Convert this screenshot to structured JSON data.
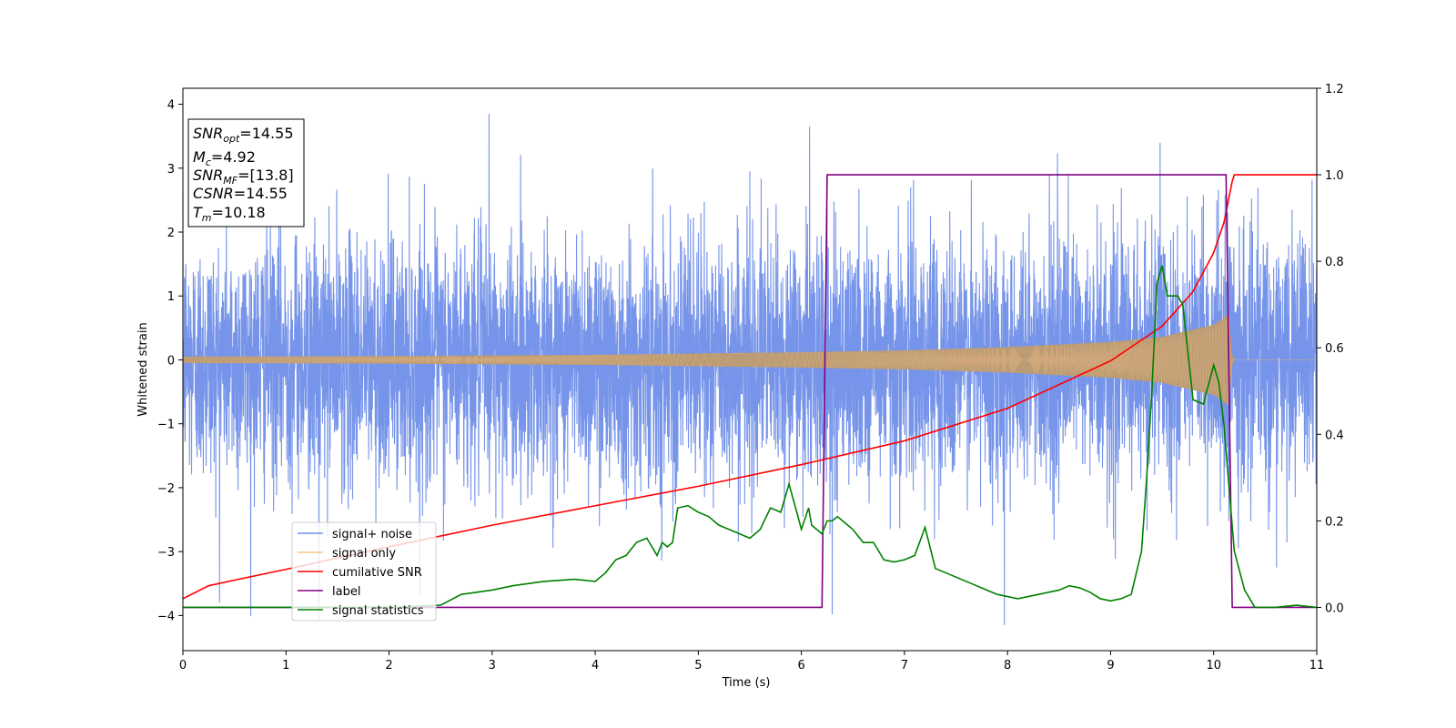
{
  "chart_data": {
    "type": "line",
    "xlabel": "Time (s)",
    "ylabel": "Whitened strain",
    "xlim": [
      0,
      11
    ],
    "ylim": [
      -4.55,
      4.25
    ],
    "y2lim": [
      -0.1,
      1.2
    ],
    "x_ticks": [
      "0",
      "1",
      "2",
      "3",
      "4",
      "5",
      "6",
      "7",
      "8",
      "9",
      "10",
      "11"
    ],
    "y_ticks": [
      "−4",
      "−3",
      "−2",
      "−1",
      "0",
      "1",
      "2",
      "3",
      "4"
    ],
    "y2_ticks": [
      "0.0",
      "0.2",
      "0.4",
      "0.6",
      "0.8",
      "1.0",
      "1.2"
    ],
    "legend_position": "lower-left",
    "annotation": {
      "lines": [
        {
          "sym": "SNR",
          "sub": "opt",
          "val": "=14.55"
        },
        {
          "sym": "M",
          "sub": "c",
          "val": "=4.92"
        },
        {
          "sym": "SNR",
          "sub": "MF",
          "val": "=[13.8]"
        },
        {
          "sym": "CSNR",
          "sub": "",
          "val": "=14.55"
        },
        {
          "sym": "T",
          "sub": "m",
          "val": "=10.18"
        }
      ]
    },
    "series": [
      {
        "name": "signal+ noise",
        "axis": "left",
        "color": "#6f8ee8",
        "description": "whitened Gaussian noise plus chirp, amplitude about ±2 to ±3",
        "noise_std": 1.0,
        "peaks": [
          [
            2.97,
            3.85
          ],
          [
            6.08,
            3.65
          ],
          [
            9.48,
            3.4
          ],
          [
            5.5,
            2.95
          ],
          [
            7.97,
            -4.15
          ],
          [
            6.3,
            -3.98
          ],
          [
            1.32,
            -4.05
          ]
        ]
      },
      {
        "name": "signal only",
        "axis": "left",
        "color": "#f5c77e",
        "description": "chirp; envelope grows from 0.05 at t=0 to 0.72 near t=10.15, zero after t=10.18",
        "envelope": {
          "x": [
            0,
            1,
            2,
            3,
            4,
            5,
            6,
            7,
            8,
            9,
            9.5,
            10,
            10.15,
            10.18,
            11
          ],
          "y": [
            0.05,
            0.055,
            0.06,
            0.07,
            0.08,
            0.1,
            0.12,
            0.15,
            0.2,
            0.28,
            0.36,
            0.55,
            0.72,
            0,
            0
          ]
        }
      },
      {
        "name": "cumilative SNR",
        "axis": "right",
        "color": "#ff0000",
        "x": [
          0,
          0.25,
          0.5,
          1,
          2,
          3,
          4,
          5,
          6,
          7,
          8,
          9,
          9.5,
          9.8,
          10,
          10.1,
          10.18,
          10.2,
          11
        ],
        "values": [
          0.02,
          0.05,
          0.063,
          0.088,
          0.14,
          0.19,
          0.235,
          0.28,
          0.33,
          0.385,
          0.46,
          0.57,
          0.65,
          0.73,
          0.82,
          0.89,
          0.985,
          1.0,
          1.0
        ]
      },
      {
        "name": "label",
        "axis": "right",
        "color": "#800080",
        "x": [
          0,
          6.2,
          6.25,
          10.12,
          10.18,
          11
        ],
        "values": [
          0,
          0,
          1,
          1,
          0,
          0
        ]
      },
      {
        "name": "signal statistics",
        "axis": "right",
        "color": "#008000",
        "x": [
          0,
          0.5,
          1,
          1.5,
          2,
          2.5,
          2.7,
          3,
          3.2,
          3.5,
          3.8,
          4.0,
          4.1,
          4.2,
          4.3,
          4.4,
          4.5,
          4.6,
          4.65,
          4.7,
          4.75,
          4.8,
          4.9,
          5.0,
          5.1,
          5.2,
          5.3,
          5.4,
          5.5,
          5.6,
          5.7,
          5.8,
          5.88,
          5.95,
          6.0,
          6.07,
          6.1,
          6.15,
          6.2,
          6.25,
          6.3,
          6.35,
          6.4,
          6.5,
          6.6,
          6.7,
          6.8,
          6.9,
          7.0,
          7.1,
          7.2,
          7.3,
          7.4,
          7.5,
          7.6,
          7.7,
          7.8,
          7.9,
          8.0,
          8.1,
          8.2,
          8.3,
          8.4,
          8.5,
          8.6,
          8.7,
          8.8,
          8.9,
          9.0,
          9.1,
          9.2,
          9.25,
          9.3,
          9.35,
          9.4,
          9.45,
          9.5,
          9.55,
          9.6,
          9.65,
          9.7,
          9.8,
          9.9,
          10.0,
          10.05,
          10.1,
          10.2,
          10.3,
          10.4,
          10.5,
          10.6,
          10.8,
          11.0
        ],
        "values": [
          0.0,
          0.0,
          0.0,
          0.0,
          0.0,
          0.005,
          0.03,
          0.04,
          0.05,
          0.06,
          0.065,
          0.06,
          0.08,
          0.11,
          0.12,
          0.15,
          0.16,
          0.12,
          0.15,
          0.14,
          0.15,
          0.23,
          0.235,
          0.22,
          0.21,
          0.19,
          0.18,
          0.17,
          0.16,
          0.18,
          0.23,
          0.22,
          0.285,
          0.225,
          0.18,
          0.23,
          0.19,
          0.18,
          0.17,
          0.2,
          0.2,
          0.21,
          0.2,
          0.18,
          0.15,
          0.15,
          0.11,
          0.105,
          0.11,
          0.12,
          0.185,
          0.09,
          0.08,
          0.07,
          0.06,
          0.05,
          0.04,
          0.03,
          0.025,
          0.02,
          0.025,
          0.03,
          0.035,
          0.04,
          0.05,
          0.045,
          0.035,
          0.02,
          0.015,
          0.02,
          0.03,
          0.08,
          0.13,
          0.3,
          0.5,
          0.75,
          0.79,
          0.72,
          0.72,
          0.72,
          0.7,
          0.48,
          0.47,
          0.56,
          0.52,
          0.42,
          0.13,
          0.04,
          0.0,
          0.0,
          0.0,
          0.005,
          0.0
        ]
      }
    ]
  }
}
